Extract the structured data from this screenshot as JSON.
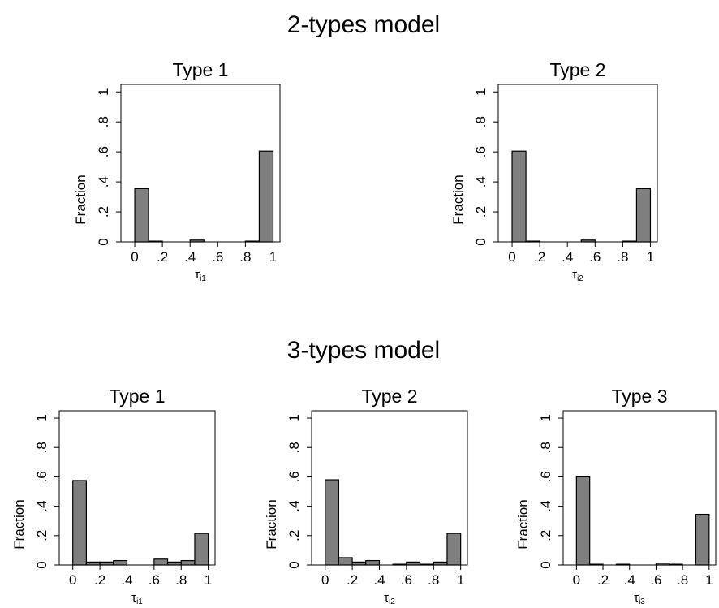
{
  "sections": [
    {
      "title": "2-types model",
      "panels": [
        {
          "title": "Type 1",
          "ylabel": "Fraction",
          "xlabel_base": "τ",
          "xlabel_sub": "i1"
        },
        {
          "title": "Type 2",
          "ylabel": "Fraction",
          "xlabel_base": "τ",
          "xlabel_sub": "i2"
        }
      ]
    },
    {
      "title": "3-types model",
      "panels": [
        {
          "title": "Type 1",
          "ylabel": "Fraction",
          "xlabel_base": "τ",
          "xlabel_sub": "i1"
        },
        {
          "title": "Type 2",
          "ylabel": "Fraction",
          "xlabel_base": "τ",
          "xlabel_sub": "i2"
        },
        {
          "title": "Type 3",
          "ylabel": "Fraction",
          "xlabel_base": "τ",
          "xlabel_sub": "i3"
        }
      ]
    }
  ],
  "colors": {
    "bar_fill": "#7f7f7f",
    "bar_stroke": "#000000"
  },
  "chart_data": [
    {
      "type": "bar",
      "title": "Type 1",
      "section": "2-types model",
      "xlabel": "τi1",
      "ylabel": "Fraction",
      "bin_edges": [
        0,
        0.1,
        0.2,
        0.3,
        0.4,
        0.5,
        0.6,
        0.7,
        0.8,
        0.9,
        1.0
      ],
      "values": [
        0.355,
        0.005,
        0.0,
        0.0,
        0.012,
        0.0,
        0.0,
        0.0,
        0.005,
        0.605
      ],
      "xlim": [
        -0.1,
        1.05
      ],
      "ylim": [
        0,
        1.05
      ],
      "xticks": [
        0,
        0.2,
        0.4,
        0.6,
        0.8,
        1.0
      ],
      "xtick_labels": [
        "0",
        ".2",
        ".4",
        ".6",
        ".8",
        "1"
      ],
      "yticks": [
        0,
        0.2,
        0.4,
        0.6,
        0.8,
        1.0
      ],
      "ytick_labels": [
        "0",
        ".2",
        ".4",
        ".6",
        ".8",
        "1"
      ],
      "grid": false
    },
    {
      "type": "bar",
      "title": "Type 2",
      "section": "2-types model",
      "xlabel": "τi2",
      "ylabel": "Fraction",
      "bin_edges": [
        0,
        0.1,
        0.2,
        0.3,
        0.4,
        0.5,
        0.6,
        0.7,
        0.8,
        0.9,
        1.0
      ],
      "values": [
        0.605,
        0.005,
        0.0,
        0.0,
        0.0,
        0.012,
        0.0,
        0.0,
        0.005,
        0.355
      ],
      "xlim": [
        -0.1,
        1.05
      ],
      "ylim": [
        0,
        1.05
      ],
      "xticks": [
        0,
        0.2,
        0.4,
        0.6,
        0.8,
        1.0
      ],
      "xtick_labels": [
        "0",
        ".2",
        ".4",
        ".6",
        ".8",
        "1"
      ],
      "yticks": [
        0,
        0.2,
        0.4,
        0.6,
        0.8,
        1.0
      ],
      "ytick_labels": [
        "0",
        ".2",
        ".4",
        ".6",
        ".8",
        "1"
      ],
      "grid": false
    },
    {
      "type": "bar",
      "title": "Type 1",
      "section": "3-types model",
      "xlabel": "τi1",
      "ylabel": "Fraction",
      "bin_edges": [
        0,
        0.1,
        0.2,
        0.3,
        0.4,
        0.5,
        0.6,
        0.7,
        0.8,
        0.9,
        1.0
      ],
      "values": [
        0.575,
        0.02,
        0.02,
        0.03,
        0.0,
        0.0,
        0.04,
        0.02,
        0.03,
        0.215
      ],
      "xlim": [
        -0.1,
        1.05
      ],
      "ylim": [
        0,
        1.05
      ],
      "xticks": [
        0,
        0.2,
        0.4,
        0.6,
        0.8,
        1.0
      ],
      "xtick_labels": [
        "0",
        ".2",
        ".4",
        ".6",
        ".8",
        "1"
      ],
      "yticks": [
        0,
        0.2,
        0.4,
        0.6,
        0.8,
        1.0
      ],
      "ytick_labels": [
        "0",
        ".2",
        ".4",
        ".6",
        ".8",
        "1"
      ],
      "grid": false
    },
    {
      "type": "bar",
      "title": "Type 2",
      "section": "3-types model",
      "xlabel": "τi2",
      "ylabel": "Fraction",
      "bin_edges": [
        0,
        0.1,
        0.2,
        0.3,
        0.4,
        0.5,
        0.6,
        0.7,
        0.8,
        0.9,
        1.0
      ],
      "values": [
        0.58,
        0.05,
        0.02,
        0.03,
        0.0,
        0.005,
        0.02,
        0.005,
        0.02,
        0.215
      ],
      "xlim": [
        -0.1,
        1.05
      ],
      "ylim": [
        0,
        1.05
      ],
      "xticks": [
        0,
        0.2,
        0.4,
        0.6,
        0.8,
        1.0
      ],
      "xtick_labels": [
        "0",
        ".2",
        ".4",
        ".6",
        ".8",
        "1"
      ],
      "yticks": [
        0,
        0.2,
        0.4,
        0.6,
        0.8,
        1.0
      ],
      "ytick_labels": [
        "0",
        ".2",
        ".4",
        ".6",
        ".8",
        "1"
      ],
      "grid": false
    },
    {
      "type": "bar",
      "title": "Type 3",
      "section": "3-types model",
      "xlabel": "τi3",
      "ylabel": "Fraction",
      "bin_edges": [
        0,
        0.1,
        0.2,
        0.3,
        0.4,
        0.5,
        0.6,
        0.7,
        0.8,
        0.9,
        1.0
      ],
      "values": [
        0.6,
        0.005,
        0.0,
        0.005,
        0.0,
        0.0,
        0.012,
        0.005,
        0.0,
        0.345
      ],
      "xlim": [
        -0.1,
        1.05
      ],
      "ylim": [
        0,
        1.05
      ],
      "xticks": [
        0,
        0.2,
        0.4,
        0.6,
        0.8,
        1.0
      ],
      "xtick_labels": [
        "0",
        ".2",
        ".4",
        ".6",
        ".8",
        "1"
      ],
      "yticks": [
        0,
        0.2,
        0.4,
        0.6,
        0.8,
        1.0
      ],
      "ytick_labels": [
        "0",
        ".2",
        ".4",
        ".6",
        ".8",
        "1"
      ],
      "grid": false
    }
  ]
}
